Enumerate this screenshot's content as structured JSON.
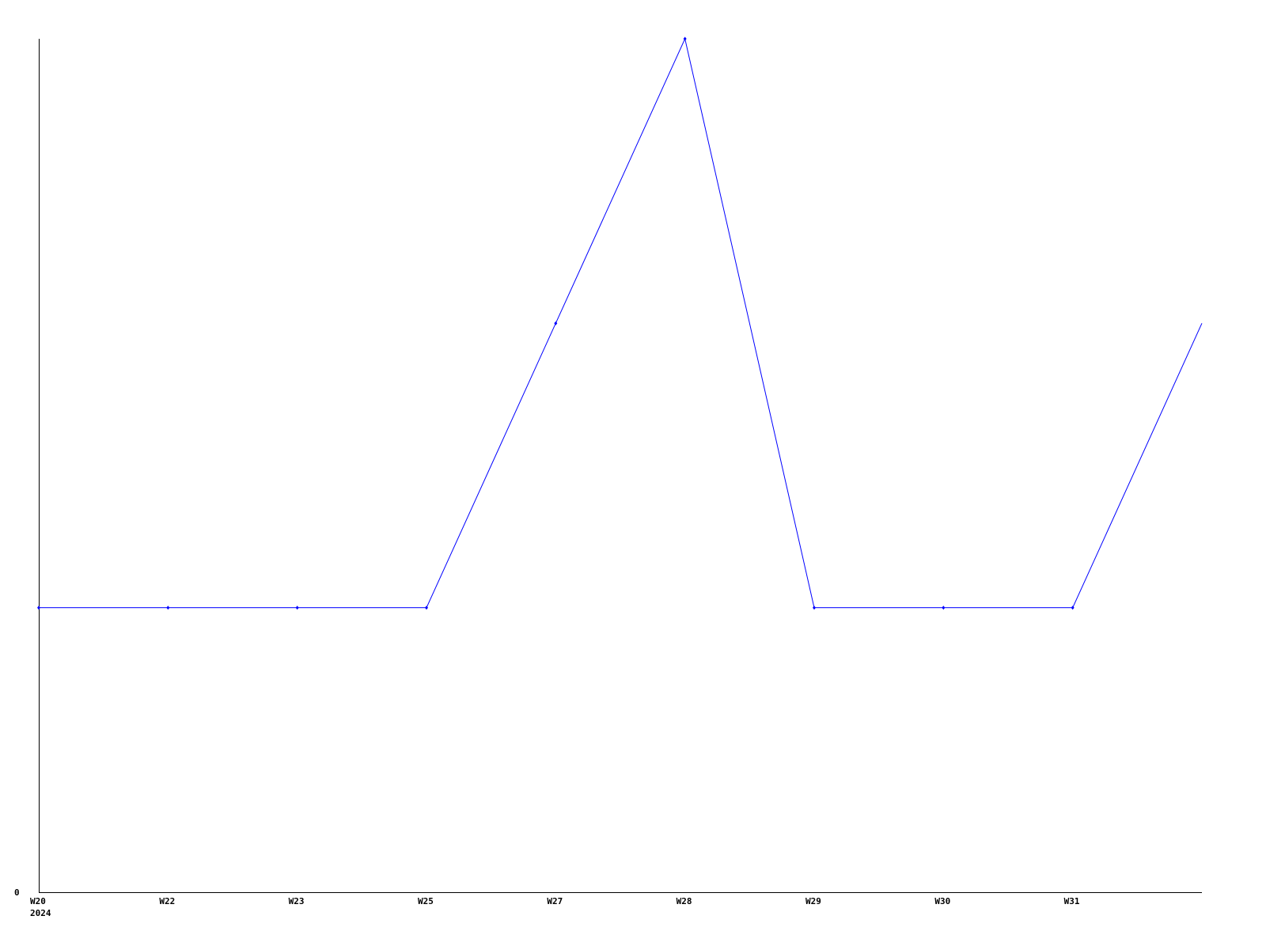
{
  "chart_data": {
    "type": "line",
    "title": "",
    "xlabel": "",
    "ylabel": "",
    "categories": [
      "W20",
      "W22",
      "W23",
      "W25",
      "W27",
      "W28",
      "W29",
      "W30",
      "W31",
      ""
    ],
    "year_label": "2024",
    "y_tick_labels": [
      "0"
    ],
    "ylim": [
      0,
      3
    ],
    "grid": false,
    "series": [
      {
        "values": [
          1,
          1,
          1,
          1,
          2,
          3,
          1,
          1,
          1,
          2
        ],
        "color": "#0000ff"
      }
    ],
    "axis_color": "#000000"
  }
}
